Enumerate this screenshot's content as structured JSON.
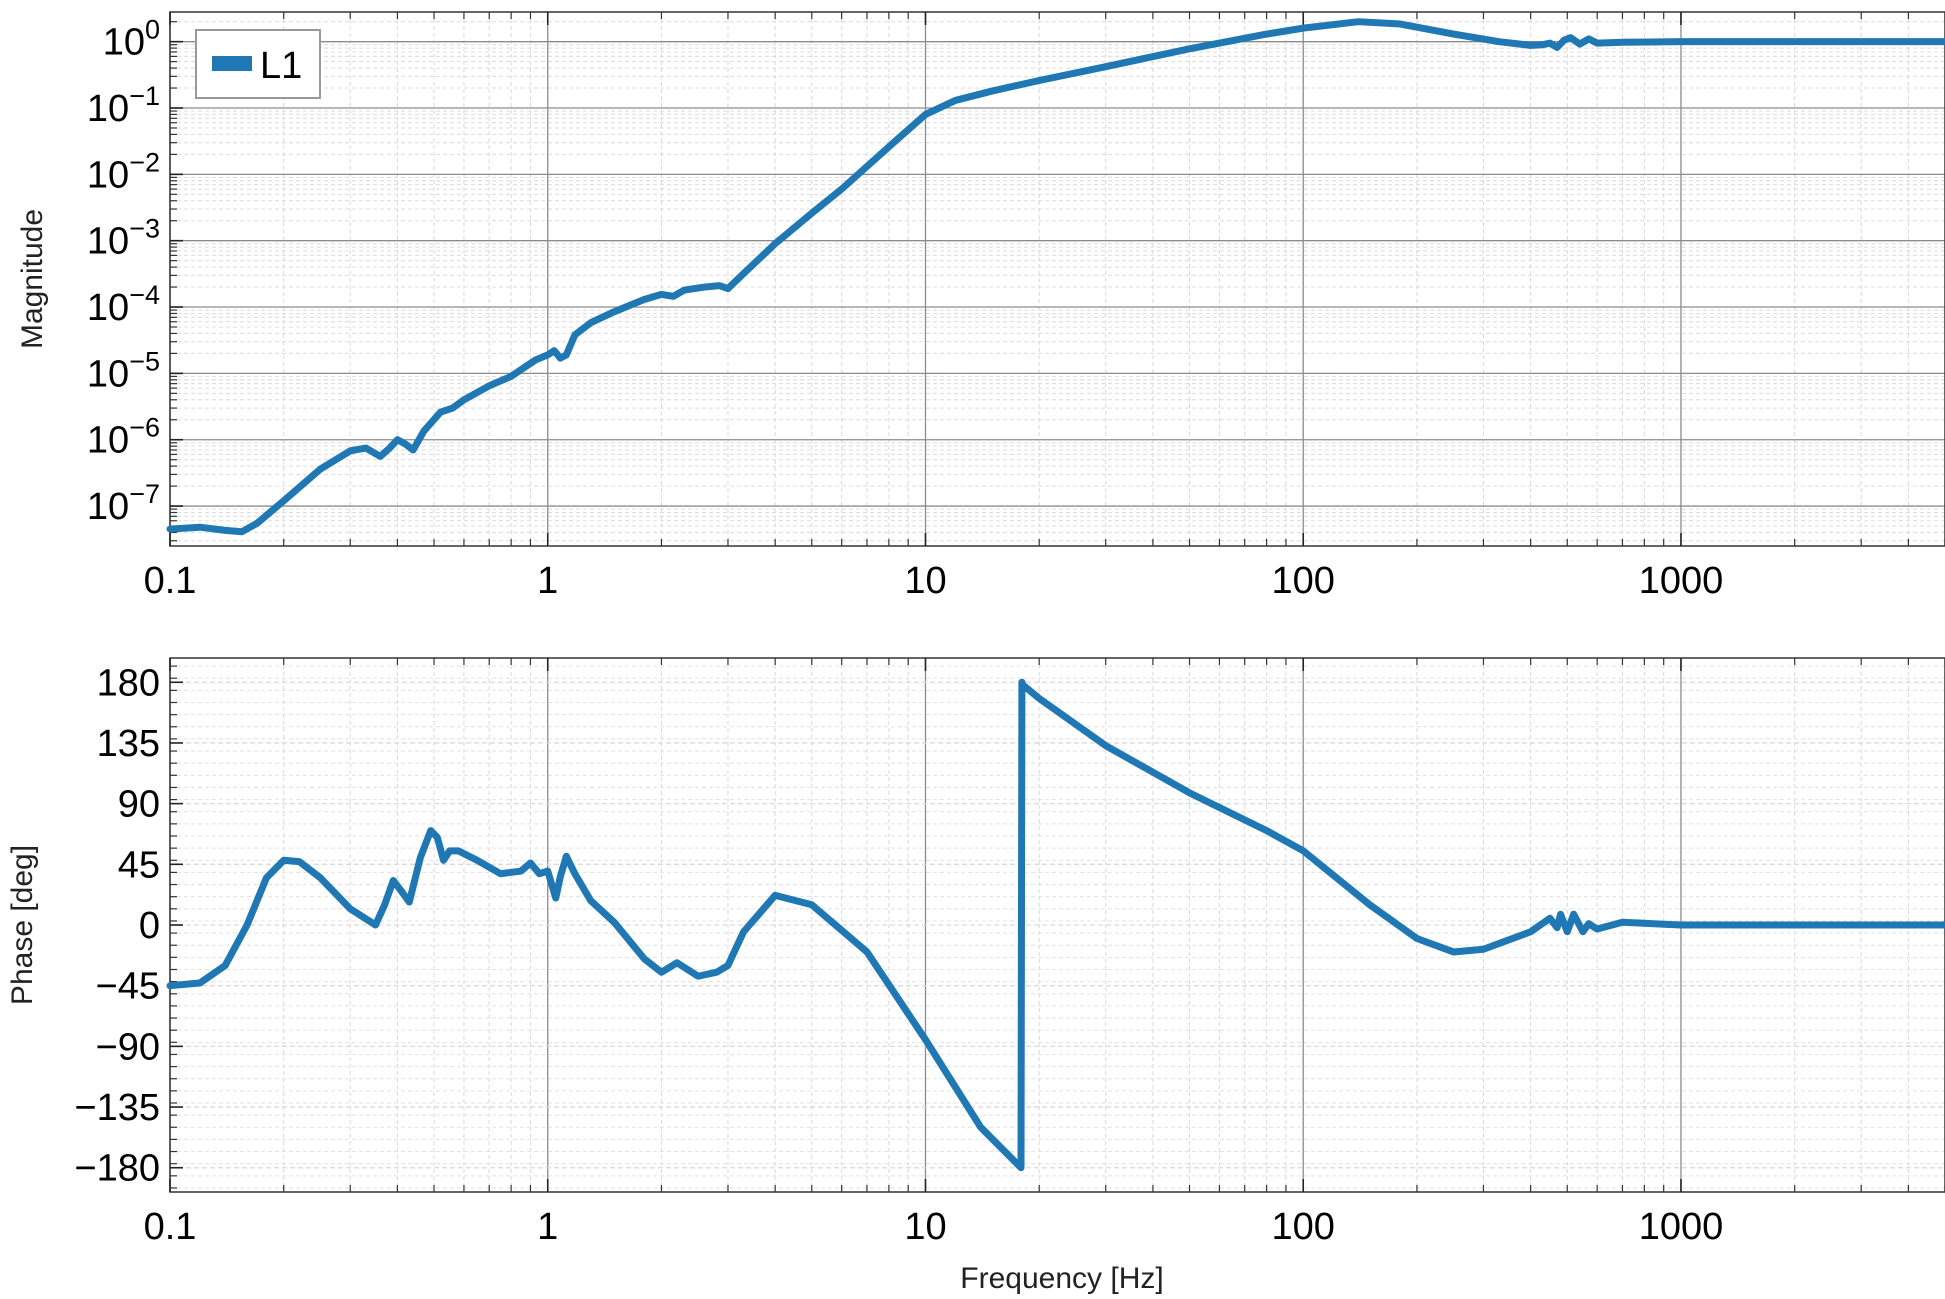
{
  "chart_data": [
    {
      "type": "line",
      "panel": "magnitude",
      "ylabel": "Magnitude",
      "xlabel": "",
      "xscale": "log",
      "yscale": "log",
      "xlim": [
        0.1,
        5000
      ],
      "ylim": [
        2.5e-08,
        2.8
      ],
      "xticks": [
        "0.1",
        "1",
        "10",
        "100",
        "1000"
      ],
      "xtick_values": [
        0.1,
        1,
        10,
        100,
        1000
      ],
      "yticks": [
        {
          "base": "10",
          "exp": "0",
          "value": 1
        },
        {
          "base": "10",
          "exp": "−1",
          "value": 0.1
        },
        {
          "base": "10",
          "exp": "−2",
          "value": 0.01
        },
        {
          "base": "10",
          "exp": "−3",
          "value": 0.001
        },
        {
          "base": "10",
          "exp": "−4",
          "value": 0.0001
        },
        {
          "base": "10",
          "exp": "−5",
          "value": 1e-05
        },
        {
          "base": "10",
          "exp": "−6",
          "value": 1e-06
        },
        {
          "base": "10",
          "exp": "−7",
          "value": 1e-07
        }
      ],
      "grid": true,
      "legend": {
        "placement": "upper-left",
        "entries": [
          "L1"
        ]
      },
      "series": [
        {
          "name": "L1",
          "color": "#1f77b4",
          "x": [
            0.1,
            0.12,
            0.14,
            0.155,
            0.17,
            0.2,
            0.25,
            0.3,
            0.33,
            0.36,
            0.38,
            0.4,
            0.42,
            0.44,
            0.47,
            0.52,
            0.56,
            0.6,
            0.7,
            0.8,
            0.88,
            0.93,
            1.0,
            1.04,
            1.08,
            1.12,
            1.18,
            1.3,
            1.5,
            1.8,
            2.0,
            2.15,
            2.3,
            2.6,
            2.85,
            3.0,
            3.3,
            4.0,
            5.0,
            6.0,
            8.0,
            10.0,
            12.0,
            15.0,
            20.0,
            30.0,
            50.0,
            80.0,
            100.0,
            140.0,
            180.0,
            250.0,
            330.0,
            400.0,
            430.0,
            450.0,
            470.0,
            490.0,
            510.0,
            540.0,
            570.0,
            600.0,
            700.0,
            1000.0,
            2000.0,
            5000.0
          ],
          "y": [
            4.5e-08,
            4.8e-08,
            4.3e-08,
            4.1e-08,
            5.5e-08,
            1.2e-07,
            3.6e-07,
            6.8e-07,
            7.5e-07,
            5.6e-07,
            7.3e-07,
            1e-06,
            8.6e-07,
            7e-07,
            1.35e-06,
            2.6e-06,
            3e-06,
            4e-06,
            6.5e-06,
            9e-06,
            1.3e-05,
            1.6e-05,
            1.9e-05,
            2.2e-05,
            1.7e-05,
            1.9e-05,
            3.8e-05,
            5.8e-05,
            8.5e-05,
            0.00013,
            0.000155,
            0.000145,
            0.00018,
            0.0002,
            0.00021,
            0.00019,
            0.00032,
            0.0009,
            0.0026,
            0.006,
            0.026,
            0.08,
            0.13,
            0.18,
            0.26,
            0.42,
            0.78,
            1.3,
            1.6,
            2.0,
            1.85,
            1.3,
            1.0,
            0.88,
            0.9,
            0.95,
            0.82,
            1.05,
            1.15,
            0.92,
            1.1,
            0.95,
            0.98,
            1.0,
            1.0,
            1.0
          ]
        }
      ]
    },
    {
      "type": "line",
      "panel": "phase",
      "ylabel": "Phase [deg]",
      "xlabel": "Frequency [Hz]",
      "xscale": "log",
      "xlim": [
        0.1,
        5000
      ],
      "ylim": [
        -198,
        198
      ],
      "xticks": [
        "0.1",
        "1",
        "10",
        "100",
        "1000"
      ],
      "xtick_values": [
        0.1,
        1,
        10,
        100,
        1000
      ],
      "yticks": [
        "180",
        "135",
        "90",
        "45",
        "0",
        "−45",
        "−90",
        "−135",
        "−180"
      ],
      "ytick_values": [
        180,
        135,
        90,
        45,
        0,
        -45,
        -90,
        -135,
        -180
      ],
      "grid": true,
      "series": [
        {
          "name": "",
          "color": "#1f77b4",
          "x": [
            0.1,
            0.12,
            0.14,
            0.16,
            0.18,
            0.2,
            0.22,
            0.25,
            0.3,
            0.35,
            0.37,
            0.39,
            0.41,
            0.43,
            0.46,
            0.49,
            0.51,
            0.53,
            0.55,
            0.58,
            0.65,
            0.75,
            0.85,
            0.9,
            0.95,
            1.0,
            1.05,
            1.08,
            1.12,
            1.18,
            1.3,
            1.5,
            1.8,
            2.0,
            2.2,
            2.5,
            2.8,
            3.0,
            3.3,
            4.0,
            5.0,
            7.0,
            10.0,
            14.0,
            17.9,
            18.0,
            18.1,
            20.0,
            30.0,
            50.0,
            80.0,
            100.0,
            150.0,
            200.0,
            250.0,
            300.0,
            400.0,
            450.0,
            470.0,
            480.0,
            500.0,
            520.0,
            550.0,
            570.0,
            600.0,
            700.0,
            1000.0,
            2000.0,
            5000.0
          ],
          "y": [
            -45,
            -43,
            -30,
            0,
            35,
            48,
            47,
            35,
            12,
            0,
            15,
            33,
            25,
            17,
            50,
            70,
            65,
            48,
            55,
            55,
            48,
            38,
            40,
            46,
            38,
            40,
            20,
            36,
            51,
            38,
            18,
            2,
            -25,
            -35,
            -28,
            -38,
            -35,
            -30,
            -5,
            22,
            15,
            -20,
            -85,
            -150,
            -180,
            180,
            178,
            168,
            133,
            98,
            70,
            55,
            15,
            -10,
            -20,
            -18,
            -5,
            5,
            -2,
            8,
            -5,
            8,
            -5,
            1,
            -3,
            2,
            0,
            0,
            0
          ]
        }
      ]
    }
  ]
}
